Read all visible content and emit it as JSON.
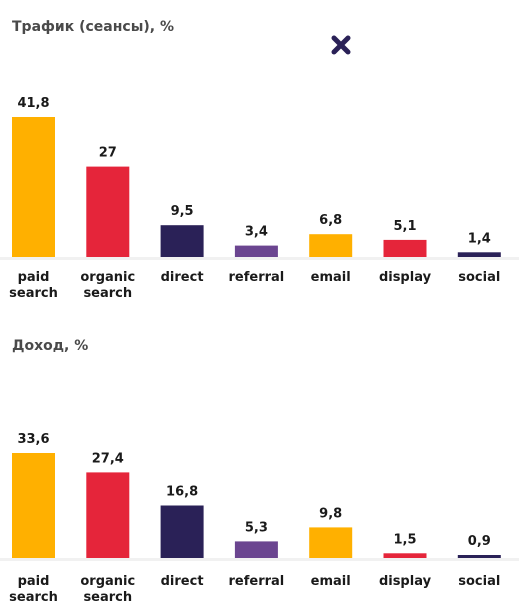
{
  "colors": {
    "paid_search": "#FFB000",
    "organic_search": "#E5253A",
    "direct": "#2A2157",
    "referral": "#6B4590",
    "email": "#FFB000",
    "display": "#E5253A",
    "social": "#2A2157",
    "text": "#1a1a1a",
    "title": "#4a4a4a"
  },
  "icons": {
    "close": "close-icon"
  },
  "chart_data": [
    {
      "type": "bar",
      "title": "Трафик (сеансы), %",
      "categories": [
        [
          "paid",
          "search"
        ],
        [
          "organic",
          "search"
        ],
        [
          "direct"
        ],
        [
          "referral"
        ],
        [
          "email"
        ],
        [
          "display"
        ],
        [
          "social"
        ]
      ],
      "values": [
        41.8,
        27,
        9.5,
        3.4,
        6.8,
        5.1,
        1.4
      ],
      "value_labels": [
        "41,8",
        "27",
        "9,5",
        "3,4",
        "6,8",
        "5,1",
        "1,4"
      ],
      "colors": [
        "#FFB000",
        "#E5253A",
        "#2A2157",
        "#6B4590",
        "#FFB000",
        "#E5253A",
        "#2A2157"
      ],
      "ylim": [
        0,
        41.8
      ],
      "grid": false,
      "xlabel": "",
      "ylabel": ""
    },
    {
      "type": "bar",
      "title": "Доход, %",
      "categories": [
        [
          "paid",
          "search"
        ],
        [
          "organic",
          "search"
        ],
        [
          "direct"
        ],
        [
          "referral"
        ],
        [
          "email"
        ],
        [
          "display"
        ],
        [
          "social"
        ]
      ],
      "values": [
        33.6,
        27.4,
        16.8,
        5.3,
        9.8,
        1.5,
        0.9
      ],
      "value_labels": [
        "33,6",
        "27,4",
        "16,8",
        "5,3",
        "9,8",
        "1,5",
        "0,9"
      ],
      "colors": [
        "#FFB000",
        "#E5253A",
        "#2A2157",
        "#6B4590",
        "#FFB000",
        "#E5253A",
        "#2A2157"
      ],
      "ylim": [
        0,
        33.6
      ],
      "grid": false,
      "xlabel": "",
      "ylabel": ""
    }
  ]
}
